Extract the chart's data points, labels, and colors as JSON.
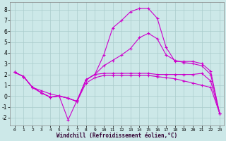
{
  "xlabel": "Windchill (Refroidissement éolien,°C)",
  "xlim": [
    -0.5,
    23.5
  ],
  "ylim": [
    -2.7,
    8.7
  ],
  "xticks": [
    0,
    1,
    2,
    3,
    4,
    5,
    6,
    7,
    8,
    9,
    10,
    11,
    12,
    13,
    14,
    15,
    16,
    17,
    18,
    19,
    20,
    21,
    22,
    23
  ],
  "yticks": [
    -2,
    -1,
    0,
    1,
    2,
    3,
    4,
    5,
    6,
    7,
    8
  ],
  "bg_color": "#cce8e8",
  "grid_color": "#aacccc",
  "line_color": "#cc00cc",
  "line1_x": [
    0,
    1,
    2,
    3,
    4,
    5,
    6,
    7,
    8,
    9,
    10,
    11,
    12,
    13,
    14,
    15,
    16,
    17,
    18,
    19,
    20,
    21,
    22,
    23
  ],
  "line1_y": [
    2.2,
    1.8,
    0.8,
    0.5,
    0.2,
    0.0,
    -2.2,
    -0.4,
    1.5,
    2.0,
    2.1,
    2.1,
    2.1,
    2.1,
    2.1,
    2.1,
    2.0,
    2.0,
    2.0,
    2.0,
    2.0,
    2.1,
    1.4,
    -1.6
  ],
  "line2_x": [
    0,
    1,
    2,
    3,
    4,
    5,
    6,
    7,
    8,
    9,
    10,
    11,
    12,
    13,
    14,
    15,
    16,
    17,
    18,
    19,
    20,
    21,
    22,
    23
  ],
  "line2_y": [
    2.2,
    1.8,
    0.8,
    0.3,
    -0.1,
    0.0,
    -0.2,
    -0.5,
    1.5,
    2.0,
    3.8,
    6.3,
    7.0,
    7.8,
    8.1,
    8.1,
    7.2,
    4.5,
    3.2,
    3.2,
    3.2,
    3.0,
    2.3,
    -1.6
  ],
  "line3_x": [
    0,
    1,
    2,
    3,
    4,
    5,
    6,
    7,
    8,
    9,
    10,
    11,
    12,
    13,
    14,
    15,
    16,
    17,
    18,
    19,
    20,
    21,
    22,
    23
  ],
  "line3_y": [
    2.2,
    1.8,
    0.8,
    0.3,
    -0.1,
    0.0,
    -0.2,
    -0.5,
    1.5,
    2.0,
    2.8,
    3.3,
    3.8,
    4.4,
    5.4,
    5.8,
    5.3,
    3.8,
    3.3,
    3.1,
    3.0,
    2.8,
    2.0,
    -1.6
  ],
  "line4_x": [
    0,
    1,
    2,
    3,
    4,
    5,
    6,
    7,
    8,
    9,
    10,
    11,
    12,
    13,
    14,
    15,
    16,
    17,
    18,
    19,
    20,
    21,
    22,
    23
  ],
  "line4_y": [
    2.2,
    1.8,
    0.8,
    0.3,
    -0.1,
    0.0,
    -0.2,
    -0.5,
    1.2,
    1.7,
    1.9,
    1.9,
    1.9,
    1.9,
    1.9,
    1.9,
    1.8,
    1.7,
    1.6,
    1.4,
    1.2,
    1.0,
    0.8,
    -1.6
  ]
}
